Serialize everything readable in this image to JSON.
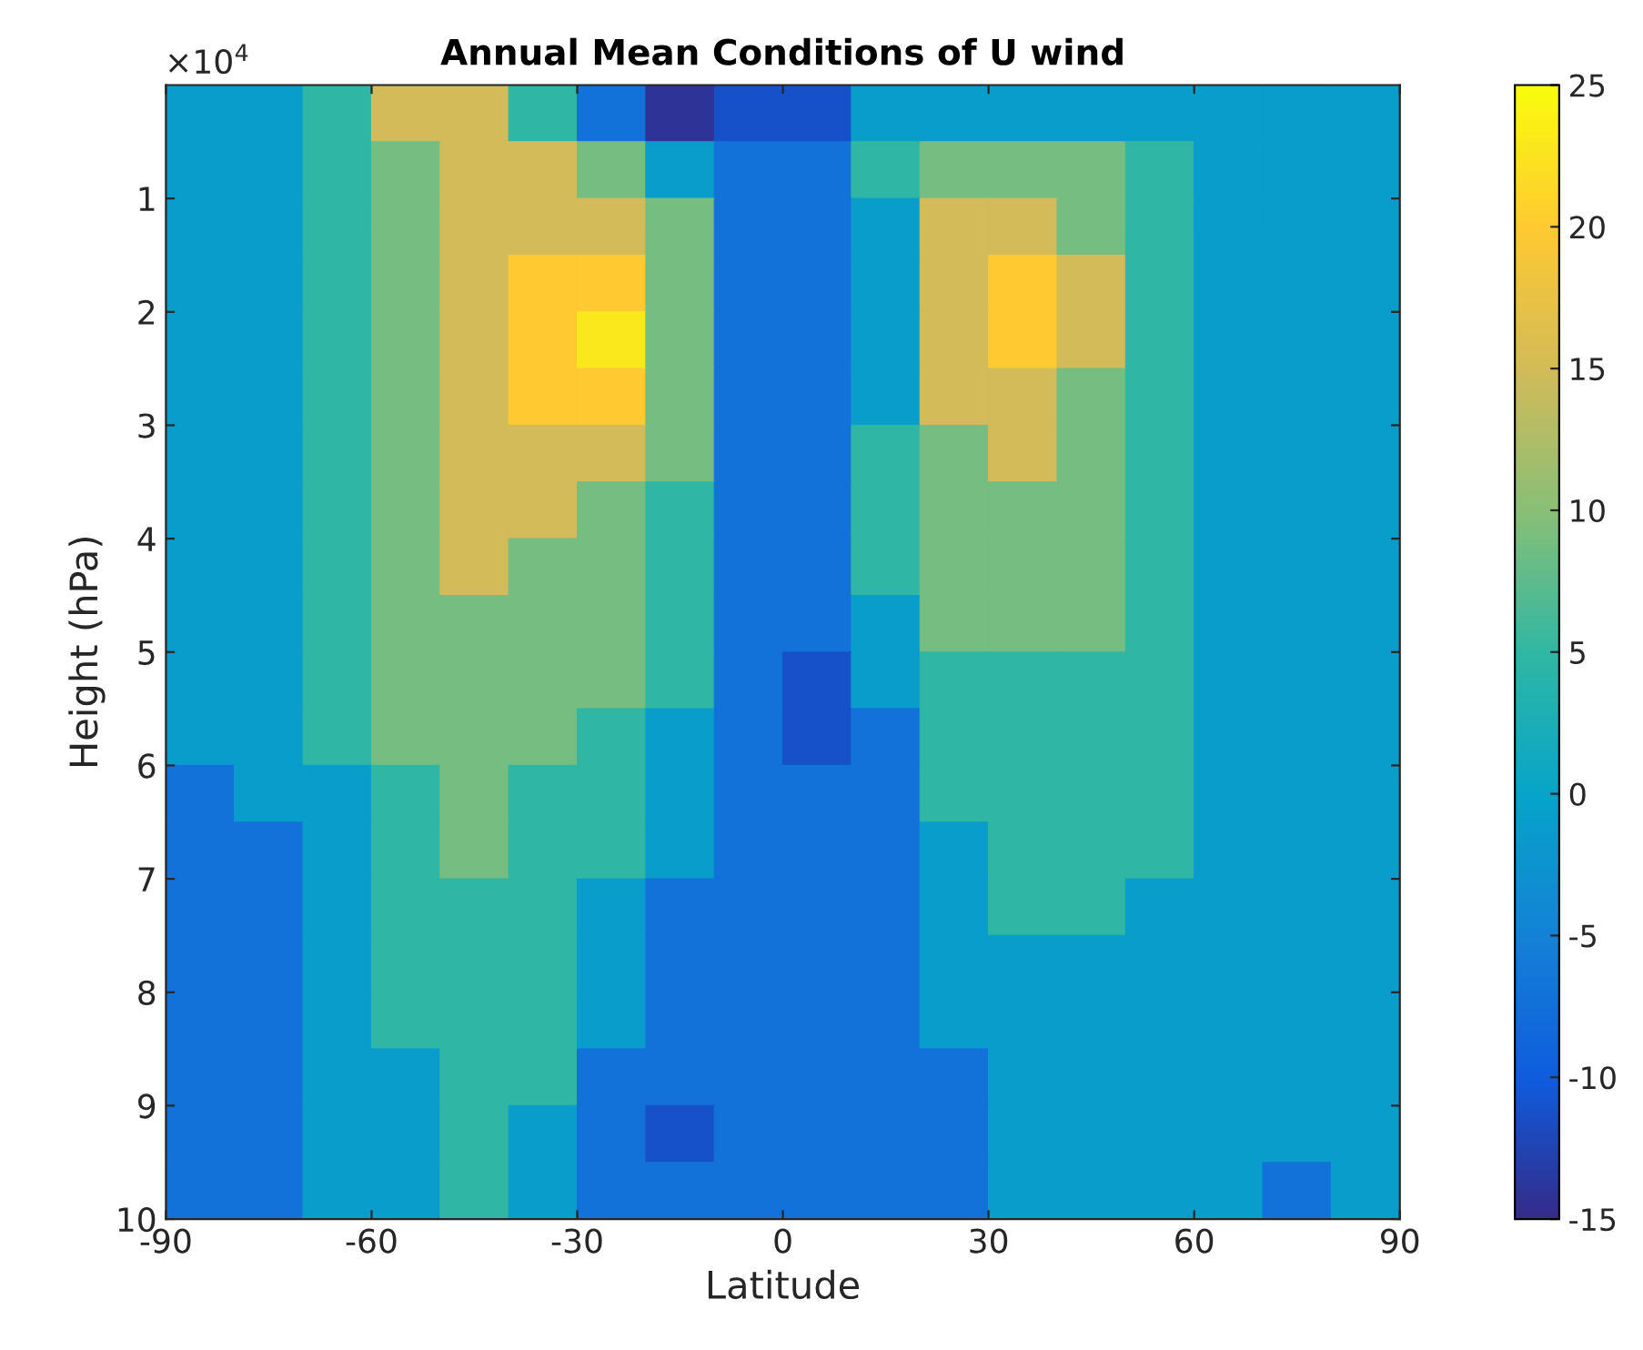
{
  "chart_data": {
    "type": "heatmap",
    "title": "Annual Mean Conditions of U wind",
    "xlabel": "Latitude",
    "ylabel": "Height (hPa)",
    "annotations": [
      "×10$^{4}$"
    ],
    "x": [
      -85,
      -75,
      -65,
      -55,
      -45,
      -35,
      -25,
      -15,
      -5,
      5,
      15,
      25,
      35,
      45,
      55,
      65,
      75,
      85
    ],
    "y": [
      0.25,
      0.75,
      1.25,
      1.75,
      2.25,
      2.75,
      3.25,
      3.75,
      4.25,
      4.75,
      5.25,
      5.75,
      6.25,
      6.75,
      7.25,
      7.75,
      8.25,
      8.75,
      9.25,
      9.75
    ],
    "cells": [
      [
        -1,
        -1,
        5,
        15,
        15,
        5,
        -7,
        -14,
        -11,
        -11,
        -1,
        -1,
        -1,
        -1,
        -1,
        -1,
        -1,
        -1
      ],
      [
        -1,
        -1,
        5,
        9,
        15,
        15,
        9,
        -1,
        -7,
        -7,
        5,
        9,
        9,
        9,
        5,
        -1,
        -1,
        -1
      ],
      [
        -1,
        -1,
        5,
        9,
        15,
        15,
        15,
        9,
        -7,
        -7,
        -1,
        15,
        15,
        9,
        5,
        -1,
        -1,
        -1
      ],
      [
        -1,
        -1,
        5,
        9,
        15,
        20,
        20,
        9,
        -7,
        -7,
        -1,
        15,
        20,
        15,
        5,
        -1,
        -1,
        -1
      ],
      [
        -1,
        -1,
        5,
        9,
        15,
        20,
        23,
        9,
        -7,
        -7,
        -1,
        15,
        20,
        15,
        5,
        -1,
        -1,
        -1
      ],
      [
        -1,
        -1,
        5,
        9,
        15,
        20,
        20,
        9,
        -7,
        -7,
        -1,
        15,
        15,
        9,
        5,
        -1,
        -1,
        -1
      ],
      [
        -1,
        -1,
        5,
        9,
        15,
        15,
        15,
        9,
        -7,
        -7,
        5,
        9,
        15,
        9,
        5,
        -1,
        -1,
        -1
      ],
      [
        -1,
        -1,
        5,
        9,
        15,
        15,
        9,
        5,
        -7,
        -7,
        5,
        9,
        9,
        9,
        5,
        -1,
        -1,
        -1
      ],
      [
        -1,
        -1,
        5,
        9,
        15,
        9,
        9,
        5,
        -7,
        -7,
        5,
        9,
        9,
        9,
        5,
        -1,
        -1,
        -1
      ],
      [
        -1,
        -1,
        5,
        9,
        9,
        9,
        9,
        5,
        -7,
        -7,
        -1,
        9,
        9,
        9,
        5,
        -1,
        -1,
        -1
      ],
      [
        -1,
        -1,
        5,
        9,
        9,
        9,
        9,
        5,
        -7,
        -11,
        -1,
        5,
        5,
        5,
        5,
        -1,
        -1,
        -1
      ],
      [
        -1,
        -1,
        5,
        9,
        9,
        9,
        5,
        -1,
        -7,
        -11,
        -7,
        5,
        5,
        5,
        5,
        -1,
        -1,
        -1
      ],
      [
        -7,
        -1,
        -1,
        5,
        9,
        5,
        5,
        -1,
        -7,
        -7,
        -7,
        5,
        5,
        5,
        5,
        -1,
        -1,
        -1
      ],
      [
        -7,
        -7,
        -1,
        5,
        9,
        5,
        5,
        -1,
        -7,
        -7,
        -7,
        -1,
        5,
        5,
        5,
        -1,
        -1,
        -1
      ],
      [
        -7,
        -7,
        -1,
        5,
        5,
        5,
        -1,
        -7,
        -7,
        -7,
        -7,
        -1,
        5,
        5,
        -1,
        -1,
        -1,
        -1
      ],
      [
        -7,
        -7,
        -1,
        5,
        5,
        5,
        -1,
        -7,
        -7,
        -7,
        -7,
        -1,
        -1,
        -1,
        -1,
        -1,
        -1,
        -1
      ],
      [
        -7,
        -7,
        -1,
        5,
        5,
        5,
        -1,
        -7,
        -7,
        -7,
        -7,
        -1,
        -1,
        -1,
        -1,
        -1,
        -1,
        -1
      ],
      [
        -7,
        -7,
        -1,
        -1,
        5,
        5,
        -7,
        -7,
        -7,
        -7,
        -7,
        -7,
        -1,
        -1,
        -1,
        -1,
        -1,
        -1
      ],
      [
        -7,
        -7,
        -1,
        -1,
        5,
        -1,
        -7,
        -11,
        -7,
        -7,
        -7,
        -7,
        -1,
        -1,
        -1,
        -1,
        -1,
        -1
      ],
      [
        -7,
        -7,
        -1,
        -1,
        5,
        -1,
        -7,
        -7,
        -7,
        -7,
        -7,
        -7,
        -1,
        -1,
        -1,
        -1,
        -7,
        -1
      ]
    ],
    "xlim": [
      -90,
      90
    ],
    "xticks": [
      -90,
      -60,
      -30,
      0,
      30,
      60,
      90
    ],
    "ylim": [
      10,
      0
    ],
    "yticks": [
      1,
      2,
      3,
      4,
      5,
      6,
      7,
      8,
      9,
      10
    ],
    "clim": [
      -15,
      25
    ],
    "cticks": [
      -15,
      -10,
      -5,
      0,
      5,
      10,
      15,
      20,
      25
    ]
  }
}
